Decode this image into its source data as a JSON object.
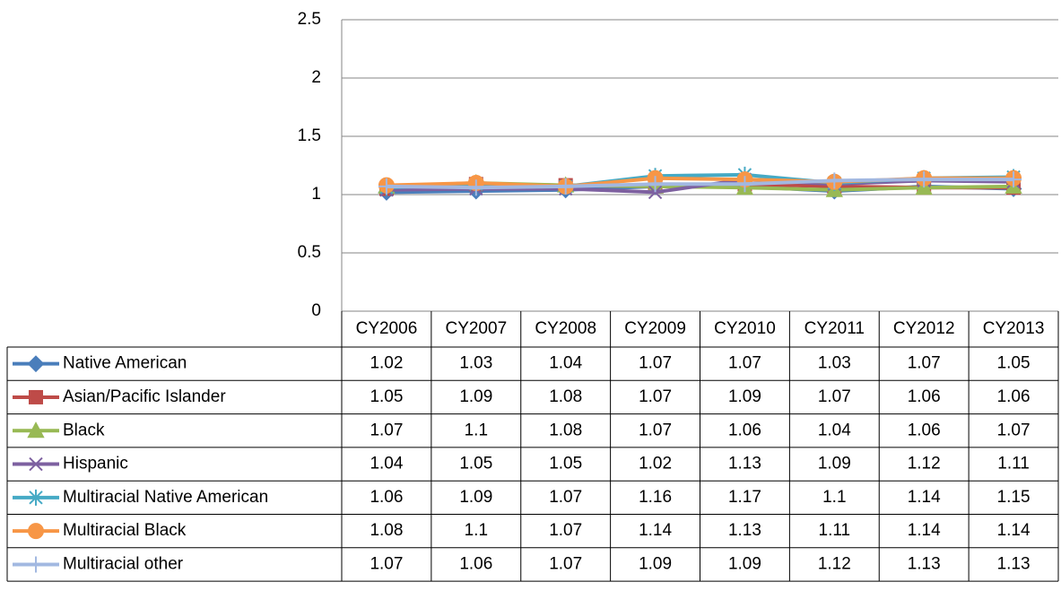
{
  "chart_data": {
    "type": "line",
    "categories": [
      "CY2006",
      "CY2007",
      "CY2008",
      "CY2009",
      "CY2010",
      "CY2011",
      "CY2012",
      "CY2013"
    ],
    "ylim": [
      0,
      2.5
    ],
    "yticks": [
      0,
      0.5,
      1,
      1.5,
      2,
      2.5
    ],
    "grid": true,
    "series": [
      {
        "name": "Native American",
        "color": "#4a7ebb",
        "marker": "diamond",
        "values": [
          1.02,
          1.03,
          1.04,
          1.07,
          1.07,
          1.03,
          1.07,
          1.05
        ]
      },
      {
        "name": "Asian/Pacific Islander",
        "color": "#be4b48",
        "marker": "square",
        "values": [
          1.05,
          1.09,
          1.08,
          1.07,
          1.09,
          1.07,
          1.06,
          1.06
        ]
      },
      {
        "name": "Black",
        "color": "#98b954",
        "marker": "triangle",
        "values": [
          1.07,
          1.1,
          1.08,
          1.07,
          1.06,
          1.04,
          1.06,
          1.07
        ]
      },
      {
        "name": "Hispanic",
        "color": "#7d60a0",
        "marker": "x",
        "values": [
          1.04,
          1.05,
          1.05,
          1.02,
          1.13,
          1.09,
          1.12,
          1.11
        ]
      },
      {
        "name": "Multiracial Native American",
        "color": "#46aac5",
        "marker": "star",
        "values": [
          1.06,
          1.09,
          1.07,
          1.16,
          1.17,
          1.1,
          1.14,
          1.15
        ]
      },
      {
        "name": "Multiracial Black",
        "color": "#f79646",
        "marker": "circle",
        "values": [
          1.08,
          1.1,
          1.07,
          1.14,
          1.13,
          1.11,
          1.14,
          1.14
        ]
      },
      {
        "name": "Multiracial other",
        "color": "#a2b8e1",
        "marker": "plus",
        "values": [
          1.07,
          1.06,
          1.07,
          1.09,
          1.09,
          1.12,
          1.13,
          1.13
        ]
      }
    ]
  }
}
